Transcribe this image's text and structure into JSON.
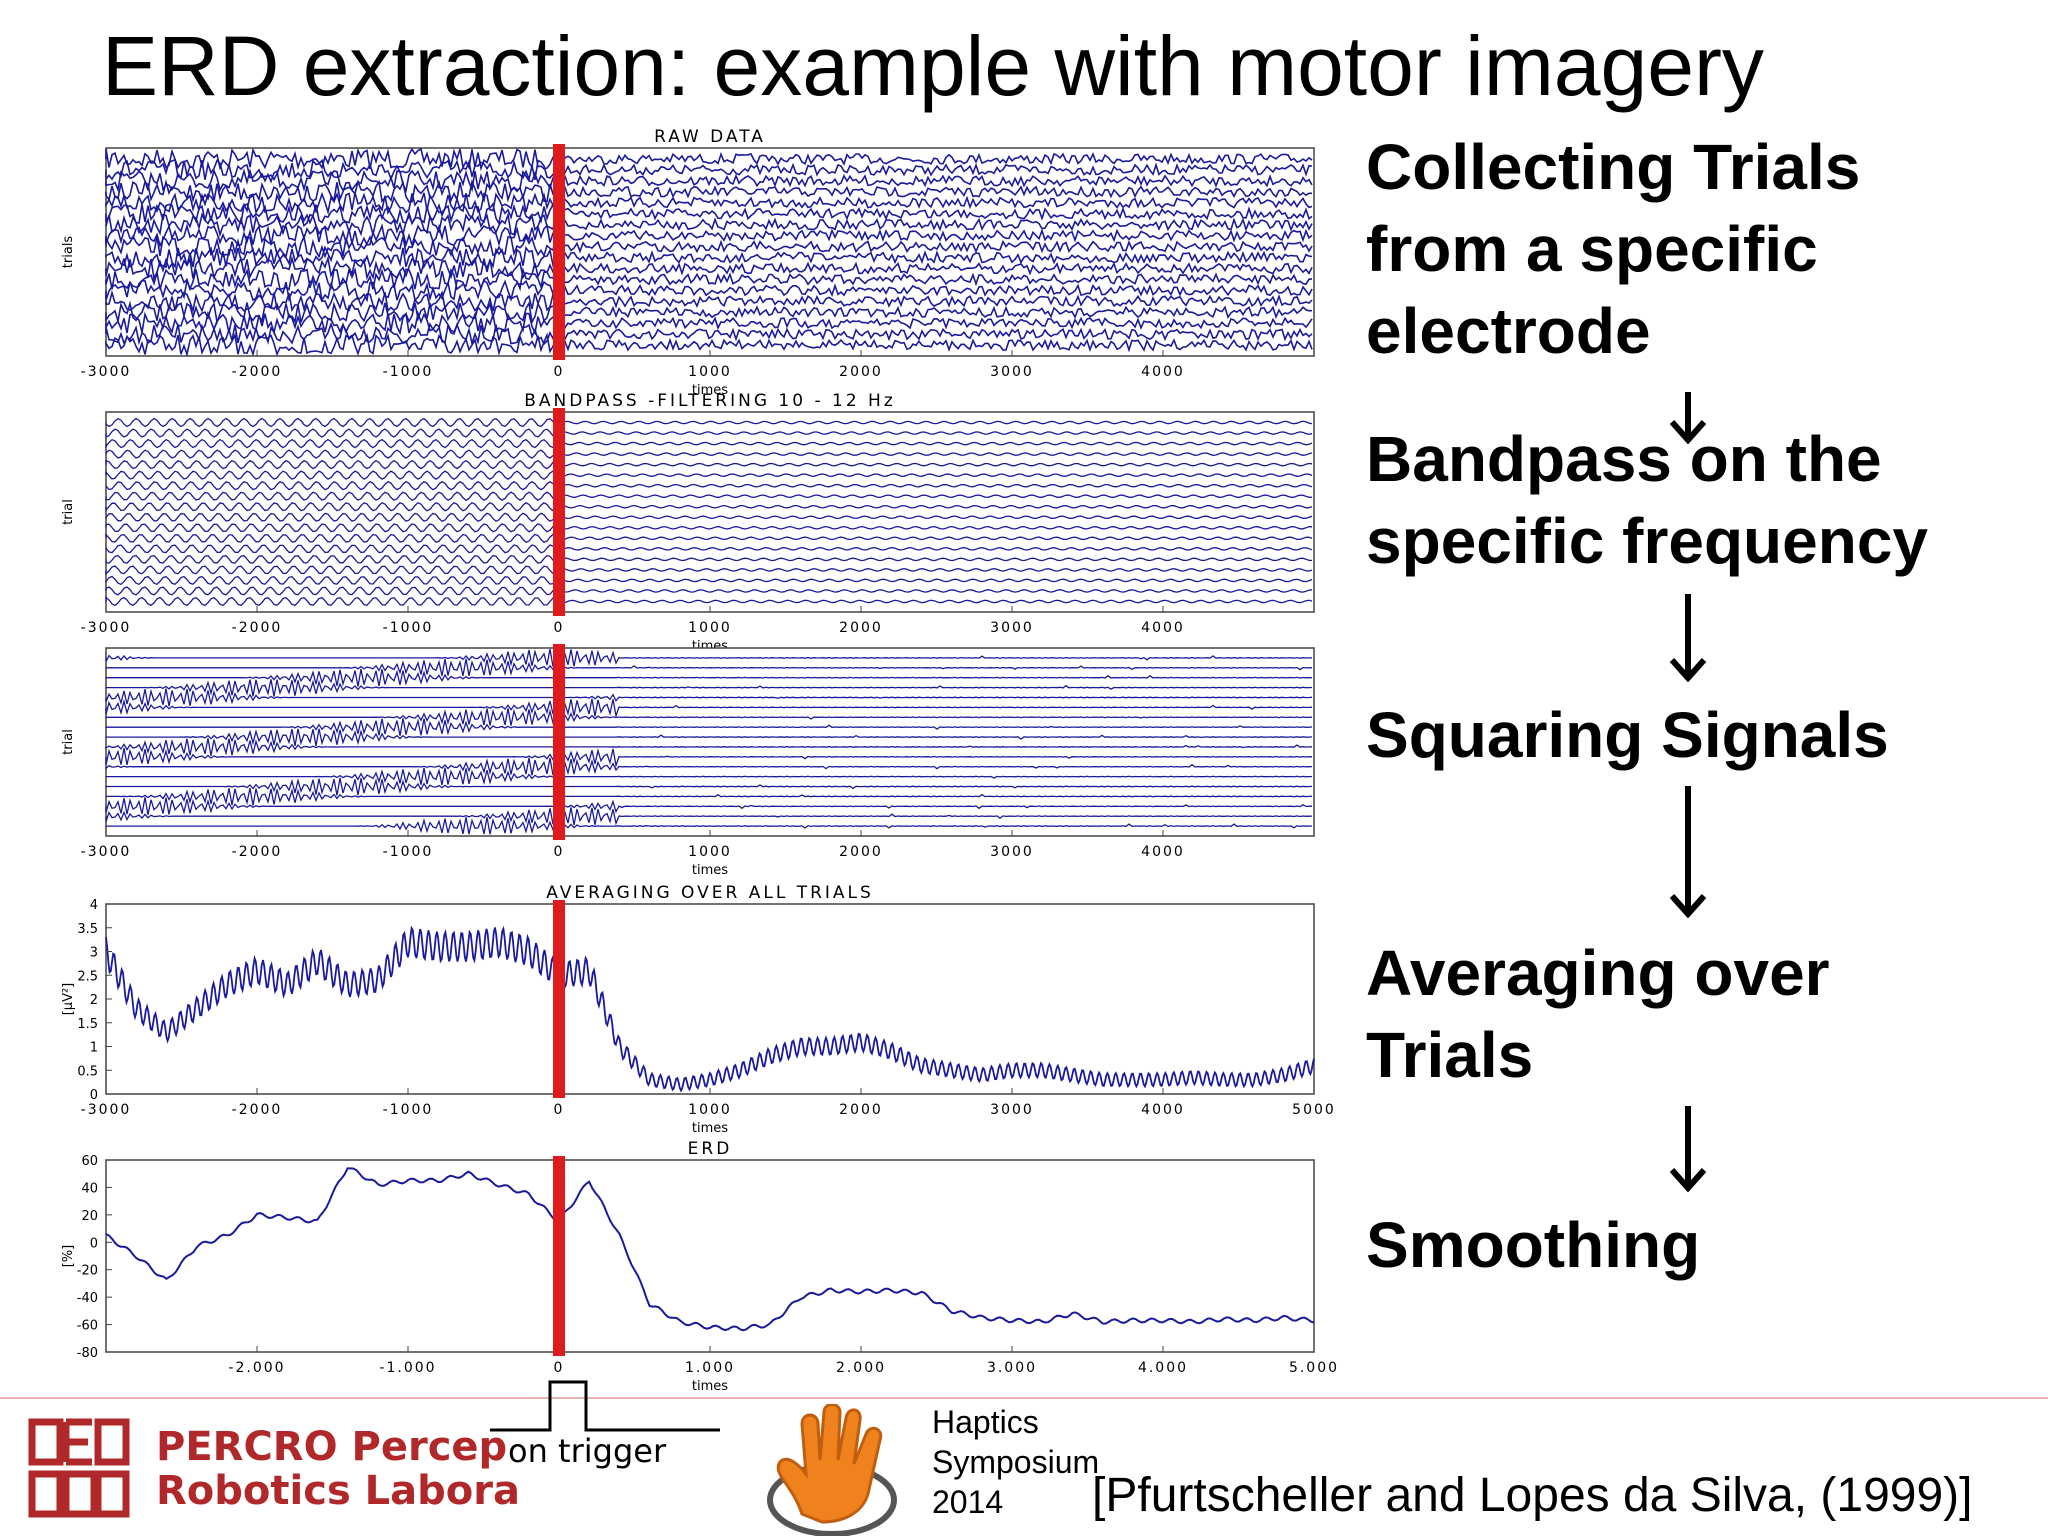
{
  "slide": {
    "title": "ERD extraction: example with motor imagery",
    "citation": "[Pfurtscheller and Lopes da Silva, (1999)]"
  },
  "steps": [
    {
      "lines": [
        "Collecting Trials",
        "from a specific",
        "electrode"
      ]
    },
    {
      "lines": [
        "Bandpass on the",
        "specific frequency"
      ]
    },
    {
      "lines": [
        "Squaring Signals"
      ]
    },
    {
      "lines": [
        "Averaging over",
        "Trials"
      ]
    },
    {
      "lines": [
        "Smoothing"
      ]
    }
  ],
  "footer": {
    "lab_line1": "PERCRO Percep",
    "lab_line2": "Robotics Labora",
    "trigger_label": "on trigger",
    "event_lines": [
      "Haptics",
      "Symposium",
      "2014"
    ]
  },
  "chart_data": [
    {
      "type": "line",
      "title": "RAW DATA",
      "xlabel": "times",
      "ylabel": "trials",
      "xlim": [
        -3000,
        5000
      ],
      "x_ticks": [
        "-3000",
        "-2000",
        "-1000",
        "0",
        "1000",
        "2000",
        "3000",
        "4000"
      ],
      "trigger_x": 0,
      "color": "#1a1a9c",
      "trigger_color": "#e01b1b"
    },
    {
      "type": "line",
      "title": "BANDPASS -FILTERING 10 - 12 Hz",
      "xlabel": "times",
      "ylabel": "trial",
      "xlim": [
        -3000,
        5000
      ],
      "x_ticks": [
        "-3000",
        "-2000",
        "-1000",
        "0",
        "1000",
        "2000",
        "3000",
        "4000"
      ],
      "trigger_x": 0
    },
    {
      "type": "line",
      "title": "",
      "xlabel": "times",
      "ylabel": "trial",
      "xlim": [
        -3000,
        5000
      ],
      "x_ticks": [
        "-3000",
        "-2000",
        "-1000",
        "0",
        "1000",
        "2000",
        "3000",
        "4000"
      ],
      "trigger_x": 0
    },
    {
      "type": "line",
      "title": "AVERAGING OVER ALL TRIALS",
      "xlabel": "times",
      "ylabel": "[μV²]",
      "xlim": [
        -3000,
        5000
      ],
      "ylim": [
        0,
        4
      ],
      "x_ticks": [
        "-3000",
        "-2000",
        "-1000",
        "0",
        "1000",
        "2000",
        "3000",
        "4000",
        "5000"
      ],
      "y_ticks": [
        "4",
        "3.5",
        "3",
        "2.5",
        "2",
        "1.5",
        "1",
        "0.5",
        "0"
      ],
      "trigger_x": 0,
      "series": [
        {
          "x": [
            -3000,
            -2800,
            -2600,
            -2400,
            -2200,
            -2000,
            -1800,
            -1600,
            -1400,
            -1200,
            -1000,
            -800,
            -600,
            -400,
            -200,
            0,
            200,
            400,
            600,
            800,
            1000,
            1200,
            1400,
            1600,
            1800,
            2000,
            2200,
            2400,
            2600,
            2800,
            3000,
            3200,
            3400,
            3600,
            3800,
            4000,
            4200,
            4400,
            4600,
            4800,
            5000
          ],
          "y": [
            3.0,
            1.8,
            1.3,
            1.8,
            2.3,
            2.6,
            2.3,
            2.8,
            2.3,
            2.4,
            3.2,
            3.1,
            3.1,
            3.2,
            3.0,
            2.5,
            2.6,
            1.0,
            0.3,
            0.2,
            0.3,
            0.5,
            0.8,
            1.0,
            1.0,
            1.1,
            0.9,
            0.6,
            0.5,
            0.4,
            0.5,
            0.5,
            0.4,
            0.3,
            0.3,
            0.3,
            0.35,
            0.3,
            0.3,
            0.4,
            0.6
          ]
        }
      ]
    },
    {
      "type": "line",
      "title": "ERD",
      "xlabel": "times",
      "ylabel": "[%]",
      "xlim": [
        -3000,
        5000
      ],
      "ylim": [
        -80,
        60
      ],
      "x_ticks": [
        "-2.000",
        "-1.000",
        "0",
        "1.000",
        "2.000",
        "3.000",
        "4.000",
        "5.000"
      ],
      "x_tick_values": [
        -2000,
        -1000,
        0,
        1000,
        2000,
        3000,
        4000,
        5000
      ],
      "y_ticks": [
        "60",
        "40",
        "20",
        "0",
        "-20",
        "-40",
        "-60",
        "-80"
      ],
      "trigger_x": 0,
      "series": [
        {
          "x": [
            -3000,
            -2800,
            -2600,
            -2400,
            -2200,
            -2000,
            -1800,
            -1600,
            -1400,
            -1200,
            -1000,
            -800,
            -600,
            -400,
            -200,
            0,
            200,
            400,
            600,
            800,
            1000,
            1200,
            1400,
            1600,
            1800,
            2000,
            2200,
            2400,
            2600,
            2800,
            3000,
            3200,
            3400,
            3600,
            3800,
            4000,
            4200,
            4400,
            4600,
            4800,
            5000
          ],
          "y": [
            5,
            -10,
            -28,
            -3,
            5,
            20,
            18,
            15,
            55,
            42,
            45,
            45,
            50,
            42,
            35,
            15,
            45,
            5,
            -45,
            -58,
            -62,
            -63,
            -60,
            -40,
            -35,
            -36,
            -35,
            -37,
            -50,
            -55,
            -57,
            -58,
            -52,
            -58,
            -57,
            -57,
            -58,
            -56,
            -57,
            -55,
            -57
          ]
        }
      ]
    }
  ]
}
